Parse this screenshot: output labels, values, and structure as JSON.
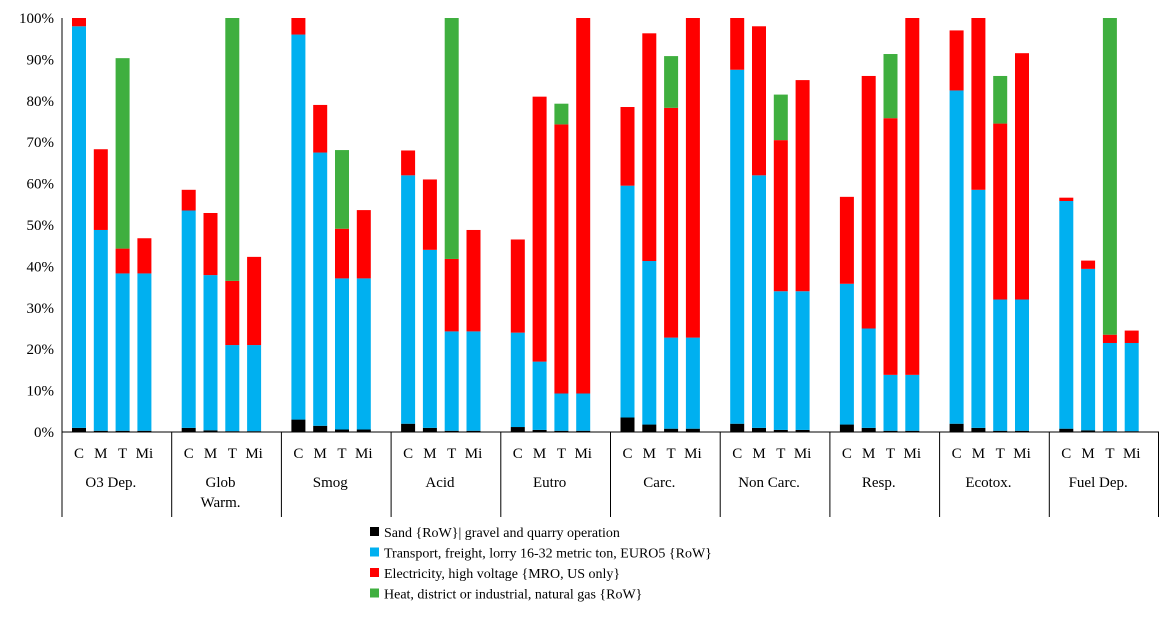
{
  "chart_data": {
    "type": "bar",
    "stacked": true,
    "y_tick_labels": [
      "0%",
      "10%",
      "20%",
      "30%",
      "40%",
      "50%",
      "60%",
      "70%",
      "80%",
      "90%",
      "100%"
    ],
    "ylim": [
      0,
      100
    ],
    "grid": false,
    "legend_position": "bottom",
    "subcategories": [
      "C",
      "M",
      "T",
      "Mi"
    ],
    "groups": [
      {
        "label": "O3 Dep.",
        "label_lines": [
          "O3 Dep."
        ]
      },
      {
        "label": "Glob Warm.",
        "label_lines": [
          "Glob",
          "Warm."
        ]
      },
      {
        "label": "Smog",
        "label_lines": [
          "Smog"
        ]
      },
      {
        "label": "Acid",
        "label_lines": [
          "Acid"
        ]
      },
      {
        "label": "Eutro",
        "label_lines": [
          "Eutro"
        ]
      },
      {
        "label": "Carc.",
        "label_lines": [
          "Carc."
        ]
      },
      {
        "label": "Non Carc.",
        "label_lines": [
          "Non Carc."
        ]
      },
      {
        "label": "Resp.",
        "label_lines": [
          "Resp."
        ]
      },
      {
        "label": "Ecotox.",
        "label_lines": [
          "Ecotox."
        ]
      },
      {
        "label": "Fuel Dep.",
        "label_lines": [
          "Fuel Dep."
        ]
      }
    ],
    "series": [
      {
        "name": "Sand {RoW}| gravel and quarry operation",
        "color": "#000000",
        "values": [
          [
            1.0,
            0.3,
            0.3,
            0.3
          ],
          [
            1.0,
            0.4,
            0.2,
            0.2
          ],
          [
            3.0,
            1.5,
            0.6,
            0.6
          ],
          [
            2.0,
            1.0,
            0.3,
            0.3
          ],
          [
            1.2,
            0.5,
            0.3,
            0.3
          ],
          [
            3.5,
            1.8,
            0.8,
            0.8
          ],
          [
            2.0,
            1.0,
            0.5,
            0.5
          ],
          [
            1.8,
            1.0,
            0.3,
            0.3
          ],
          [
            2.0,
            1.0,
            0.3,
            0.3
          ],
          [
            0.8,
            0.4,
            0.2,
            0.2
          ]
        ]
      },
      {
        "name": "Transport, freight, lorry 16-32 metric ton, EURO5 {RoW}",
        "color": "#00B0F0",
        "values": [
          [
            97.0,
            48.5,
            38.0,
            38.0
          ],
          [
            52.5,
            37.5,
            20.8,
            20.8
          ],
          [
            93.0,
            66.0,
            36.5,
            36.5
          ],
          [
            60.0,
            43.0,
            24.0,
            24.0
          ],
          [
            22.8,
            16.5,
            9.0,
            9.0
          ],
          [
            56.0,
            39.5,
            22.0,
            22.0
          ],
          [
            85.5,
            61.0,
            33.5,
            33.5
          ],
          [
            34.0,
            24.0,
            13.5,
            13.5
          ],
          [
            80.5,
            57.5,
            31.7,
            31.7
          ],
          [
            55.0,
            39.0,
            21.3,
            21.3
          ]
        ]
      },
      {
        "name": "Electricity, high voltage {MRO, US only}",
        "color": "#FF0000",
        "values": [
          [
            2.0,
            19.5,
            6.0,
            8.5
          ],
          [
            5.0,
            15.0,
            15.5,
            21.3
          ],
          [
            4.0,
            11.5,
            12.0,
            16.5
          ],
          [
            6.0,
            17.0,
            17.5,
            24.5
          ],
          [
            22.5,
            64.0,
            65.0,
            90.7
          ],
          [
            19.0,
            55.0,
            55.5,
            77.2
          ],
          [
            12.5,
            36.0,
            36.5,
            51.0
          ],
          [
            21.0,
            61.0,
            62.0,
            86.2
          ],
          [
            14.5,
            41.5,
            42.5,
            59.5
          ],
          [
            0.8,
            2.0,
            2.0,
            3.0
          ]
        ]
      },
      {
        "name": "Heat, district or industrial, natural gas {RoW}",
        "color": "#3FAF3F",
        "values": [
          [
            0.0,
            0.0,
            46.0,
            0.0
          ],
          [
            0.0,
            0.0,
            63.5,
            0.0
          ],
          [
            0.0,
            0.0,
            19.0,
            0.0
          ],
          [
            0.0,
            0.0,
            58.2,
            0.0
          ],
          [
            0.0,
            0.0,
            5.0,
            0.0
          ],
          [
            0.0,
            0.0,
            12.5,
            0.0
          ],
          [
            0.0,
            0.0,
            11.0,
            0.0
          ],
          [
            0.0,
            0.0,
            15.5,
            0.0
          ],
          [
            0.0,
            0.0,
            11.5,
            0.0
          ],
          [
            0.0,
            0.0,
            76.5,
            0.0
          ]
        ]
      }
    ]
  }
}
